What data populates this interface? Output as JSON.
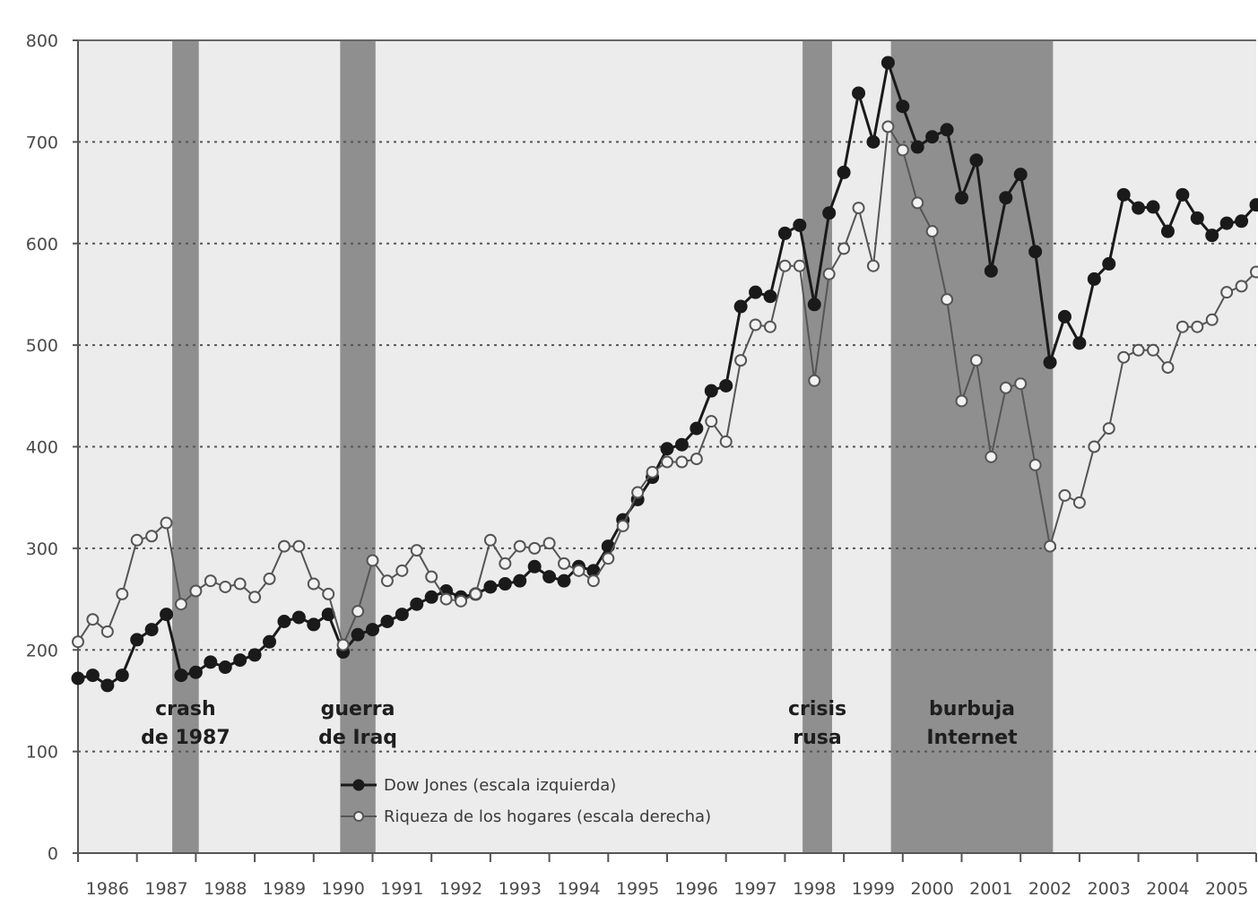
{
  "chart_data": {
    "type": "line",
    "title": "",
    "xlabel": "",
    "ylabel": "",
    "xlim": [
      1986.0,
      2006.0
    ],
    "ylim": [
      0,
      800
    ],
    "yticks": [
      0,
      100,
      200,
      300,
      400,
      500,
      600,
      700,
      800
    ],
    "xtick_labels": [
      "1986",
      "1987",
      "1988",
      "1989",
      "1990",
      "1991",
      "1992",
      "1993",
      "1994",
      "1995",
      "1996",
      "1997",
      "1998",
      "1999",
      "2000",
      "2001",
      "2002",
      "2003",
      "2004",
      "2005"
    ],
    "grid": {
      "horizontal": true,
      "style": "dotted"
    },
    "legend": {
      "placement": "bottom-center"
    },
    "colors": {
      "plot_background": "#ececec",
      "shaded_band": "#8f8f8f",
      "dow_line": "#1a1a1a",
      "wealth_line": "#555555",
      "grid": "#555555"
    },
    "shaded_periods": [
      {
        "start": 1987.6,
        "end": 1988.05,
        "label_lines": [
          "crash",
          "de 1987"
        ]
      },
      {
        "start": 1990.45,
        "end": 1991.05,
        "label_lines": [
          "guerra",
          "de Iraq"
        ]
      },
      {
        "start": 1998.3,
        "end": 1998.8,
        "label_lines": [
          "crisis",
          "rusa"
        ]
      },
      {
        "start": 1999.8,
        "end": 2002.55,
        "label_lines": [
          "burbuja",
          "Internet"
        ]
      }
    ],
    "series": [
      {
        "name": "Dow Jones (escala izquierda)",
        "marker": "filled-circle",
        "points": [
          [
            1986.0,
            172
          ],
          [
            1986.25,
            175
          ],
          [
            1986.5,
            165
          ],
          [
            1986.75,
            175
          ],
          [
            1987.0,
            210
          ],
          [
            1987.25,
            220
          ],
          [
            1987.5,
            235
          ],
          [
            1987.75,
            175
          ],
          [
            1988.0,
            178
          ],
          [
            1988.25,
            188
          ],
          [
            1988.5,
            183
          ],
          [
            1988.75,
            190
          ],
          [
            1989.0,
            195
          ],
          [
            1989.25,
            208
          ],
          [
            1989.5,
            228
          ],
          [
            1989.75,
            232
          ],
          [
            1990.0,
            225
          ],
          [
            1990.25,
            235
          ],
          [
            1990.5,
            198
          ],
          [
            1990.75,
            215
          ],
          [
            1991.0,
            220
          ],
          [
            1991.25,
            228
          ],
          [
            1991.5,
            235
          ],
          [
            1991.75,
            245
          ],
          [
            1992.0,
            252
          ],
          [
            1992.25,
            258
          ],
          [
            1992.5,
            252
          ],
          [
            1992.75,
            255
          ],
          [
            1993.0,
            262
          ],
          [
            1993.25,
            265
          ],
          [
            1993.5,
            268
          ],
          [
            1993.75,
            282
          ],
          [
            1994.0,
            272
          ],
          [
            1994.25,
            268
          ],
          [
            1994.5,
            282
          ],
          [
            1994.75,
            278
          ],
          [
            1995.0,
            302
          ],
          [
            1995.25,
            328
          ],
          [
            1995.5,
            348
          ],
          [
            1995.75,
            370
          ],
          [
            1996.0,
            398
          ],
          [
            1996.25,
            402
          ],
          [
            1996.5,
            418
          ],
          [
            1996.75,
            455
          ],
          [
            1997.0,
            460
          ],
          [
            1997.25,
            538
          ],
          [
            1997.5,
            552
          ],
          [
            1997.75,
            548
          ],
          [
            1998.0,
            610
          ],
          [
            1998.25,
            618
          ],
          [
            1998.5,
            540
          ],
          [
            1998.75,
            630
          ],
          [
            1999.0,
            670
          ],
          [
            1999.25,
            748
          ],
          [
            1999.5,
            700
          ],
          [
            1999.75,
            778
          ],
          [
            2000.0,
            735
          ],
          [
            2000.25,
            695
          ],
          [
            2000.5,
            705
          ],
          [
            2000.75,
            712
          ],
          [
            2001.0,
            645
          ],
          [
            2001.25,
            682
          ],
          [
            2001.5,
            573
          ],
          [
            2001.75,
            645
          ],
          [
            2002.0,
            668
          ],
          [
            2002.25,
            592
          ],
          [
            2002.5,
            483
          ],
          [
            2002.75,
            528
          ],
          [
            2003.0,
            502
          ],
          [
            2003.25,
            565
          ],
          [
            2003.5,
            580
          ],
          [
            2003.75,
            648
          ],
          [
            2004.0,
            635
          ],
          [
            2004.25,
            636
          ],
          [
            2004.5,
            612
          ],
          [
            2004.75,
            648
          ],
          [
            2005.0,
            625
          ],
          [
            2005.25,
            608
          ],
          [
            2005.5,
            620
          ],
          [
            2005.75,
            622
          ],
          [
            2006.0,
            638
          ]
        ]
      },
      {
        "name": "Riqueza de los hogares (escala derecha)",
        "marker": "open-circle",
        "points": [
          [
            1986.0,
            208
          ],
          [
            1986.25,
            230
          ],
          [
            1986.5,
            218
          ],
          [
            1986.75,
            255
          ],
          [
            1987.0,
            308
          ],
          [
            1987.25,
            312
          ],
          [
            1987.5,
            325
          ],
          [
            1987.75,
            245
          ],
          [
            1988.0,
            258
          ],
          [
            1988.25,
            268
          ],
          [
            1988.5,
            262
          ],
          [
            1988.75,
            265
          ],
          [
            1989.0,
            252
          ],
          [
            1989.25,
            270
          ],
          [
            1989.5,
            302
          ],
          [
            1989.75,
            302
          ],
          [
            1990.0,
            265
          ],
          [
            1990.25,
            255
          ],
          [
            1990.5,
            205
          ],
          [
            1990.75,
            238
          ],
          [
            1991.0,
            288
          ],
          [
            1991.25,
            268
          ],
          [
            1991.5,
            278
          ],
          [
            1991.75,
            298
          ],
          [
            1992.0,
            272
          ],
          [
            1992.25,
            250
          ],
          [
            1992.5,
            248
          ],
          [
            1992.75,
            255
          ],
          [
            1993.0,
            308
          ],
          [
            1993.25,
            285
          ],
          [
            1993.5,
            302
          ],
          [
            1993.75,
            300
          ],
          [
            1994.0,
            305
          ],
          [
            1994.25,
            285
          ],
          [
            1994.5,
            278
          ],
          [
            1994.75,
            268
          ],
          [
            1995.0,
            290
          ],
          [
            1995.25,
            322
          ],
          [
            1995.5,
            355
          ],
          [
            1995.75,
            375
          ],
          [
            1996.0,
            385
          ],
          [
            1996.25,
            385
          ],
          [
            1996.5,
            388
          ],
          [
            1996.75,
            425
          ],
          [
            1997.0,
            405
          ],
          [
            1997.25,
            485
          ],
          [
            1997.5,
            520
          ],
          [
            1997.75,
            518
          ],
          [
            1998.0,
            578
          ],
          [
            1998.25,
            578
          ],
          [
            1998.5,
            465
          ],
          [
            1998.75,
            570
          ],
          [
            1999.0,
            595
          ],
          [
            1999.25,
            635
          ],
          [
            1999.5,
            578
          ],
          [
            1999.75,
            715
          ],
          [
            2000.0,
            692
          ],
          [
            2000.25,
            640
          ],
          [
            2000.5,
            612
          ],
          [
            2000.75,
            545
          ],
          [
            2001.0,
            445
          ],
          [
            2001.25,
            485
          ],
          [
            2001.5,
            390
          ],
          [
            2001.75,
            458
          ],
          [
            2002.0,
            462
          ],
          [
            2002.25,
            382
          ],
          [
            2002.5,
            302
          ],
          [
            2002.75,
            352
          ],
          [
            2003.0,
            345
          ],
          [
            2003.25,
            400
          ],
          [
            2003.5,
            418
          ],
          [
            2003.75,
            488
          ],
          [
            2004.0,
            495
          ],
          [
            2004.25,
            495
          ],
          [
            2004.5,
            478
          ],
          [
            2004.75,
            518
          ],
          [
            2005.0,
            518
          ],
          [
            2005.25,
            525
          ],
          [
            2005.5,
            552
          ],
          [
            2005.75,
            558
          ],
          [
            2006.0,
            572
          ]
        ]
      }
    ]
  }
}
